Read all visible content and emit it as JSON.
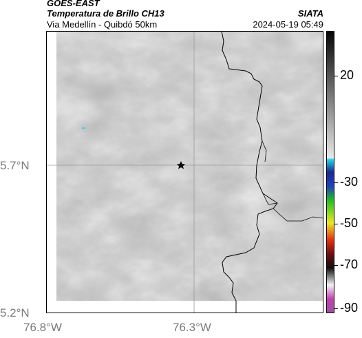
{
  "header": {
    "title": "GOES-EAST",
    "subtitle": "Temperatura de Brillo CH13",
    "org": "SIATA",
    "location": "Via Medellín - Quibdó 50km",
    "datetime": "2024-05-19 05:49"
  },
  "axes": {
    "lat_labels": [
      "5.7°N",
      "5.2°N"
    ],
    "lon_labels": [
      "76.8°W",
      "76.3°W"
    ]
  },
  "colorbar": {
    "ticks": [
      "20",
      "-30",
      "-50",
      "-70",
      "-90"
    ]
  },
  "marker": {
    "icon": "star-icon"
  },
  "colors": {
    "gridline": "#9a9a9a",
    "coastline": "#000000"
  }
}
